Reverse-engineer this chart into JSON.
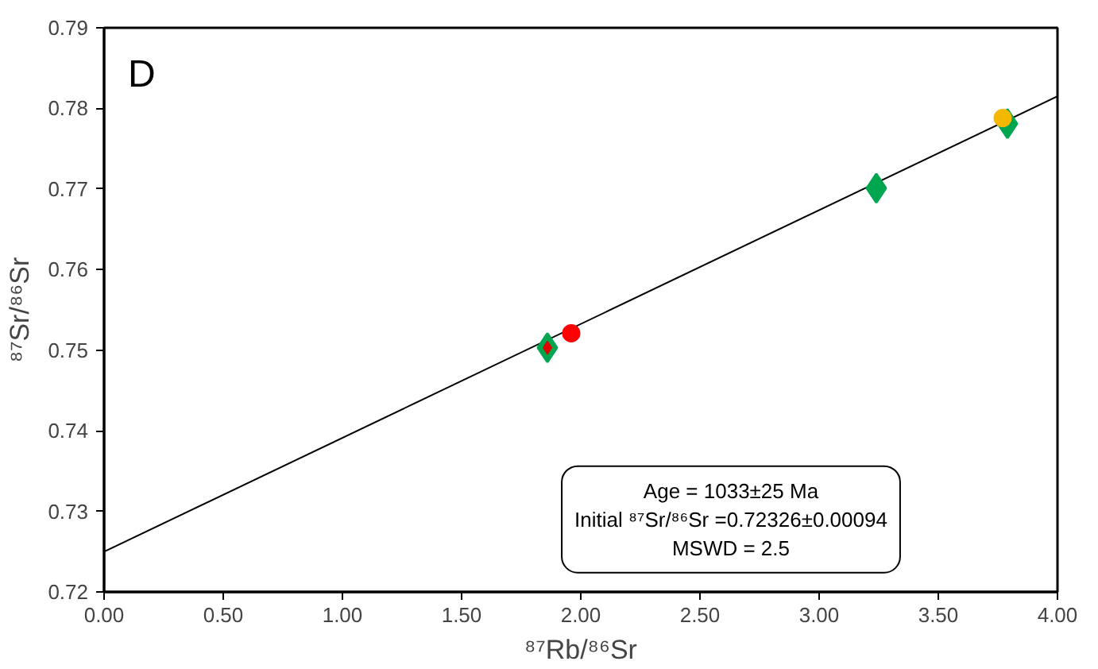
{
  "chart_data": {
    "type": "scatter",
    "xlabel": "⁸⁷Rb/⁸⁶Sr",
    "ylabel": "⁸⁷Sr/⁸⁶Sr",
    "series": [
      {
        "type": "line",
        "color": "#000000",
        "x": [
          0,
          4
        ],
        "values": [
          0.725,
          0.7815
        ],
        "marker": "none",
        "line_style": "solid"
      },
      {
        "color": "#00a550",
        "x": [
          1.86,
          3.24,
          3.79
        ],
        "values": [
          0.7503,
          0.7701,
          0.7781
        ],
        "marker": "diamond"
      },
      {
        "color": "#ff0000",
        "x": [
          1.96
        ],
        "values": [
          0.7521
        ],
        "marker": "circle"
      },
      {
        "color": "#f5b800",
        "x": [
          3.77
        ],
        "values": [
          0.7788
        ],
        "marker": "circle"
      },
      {
        "color": "#e00000",
        "x": [
          1.86
        ],
        "values": [
          0.7503
        ],
        "marker": "diamond"
      }
    ],
    "xlim": [
      0,
      4
    ],
    "ylim": [
      0.72,
      0.79
    ],
    "xticks": [
      {
        "value": 0,
        "label": "0.00"
      },
      {
        "value": 0.5,
        "label": "0.50"
      },
      {
        "value": 1,
        "label": "1.00"
      },
      {
        "value": 1.5,
        "label": "1.50"
      },
      {
        "value": 2,
        "label": "2.00"
      },
      {
        "value": 2.5,
        "label": "2.50"
      },
      {
        "value": 3,
        "label": "3.00"
      },
      {
        "value": 3.5,
        "label": "3.50"
      },
      {
        "value": 4,
        "label": "4.00"
      }
    ],
    "yticks": [
      0.72,
      0.73,
      0.74,
      0.75,
      0.76,
      0.77,
      0.78,
      0.79
    ],
    "grid": false,
    "annotations": [
      "D",
      "Age = 1033±25 Ma",
      "Initial ⁸⁷Sr/⁸⁶Sr =0.72326±0.00094",
      "MSWD = 2.5"
    ]
  }
}
